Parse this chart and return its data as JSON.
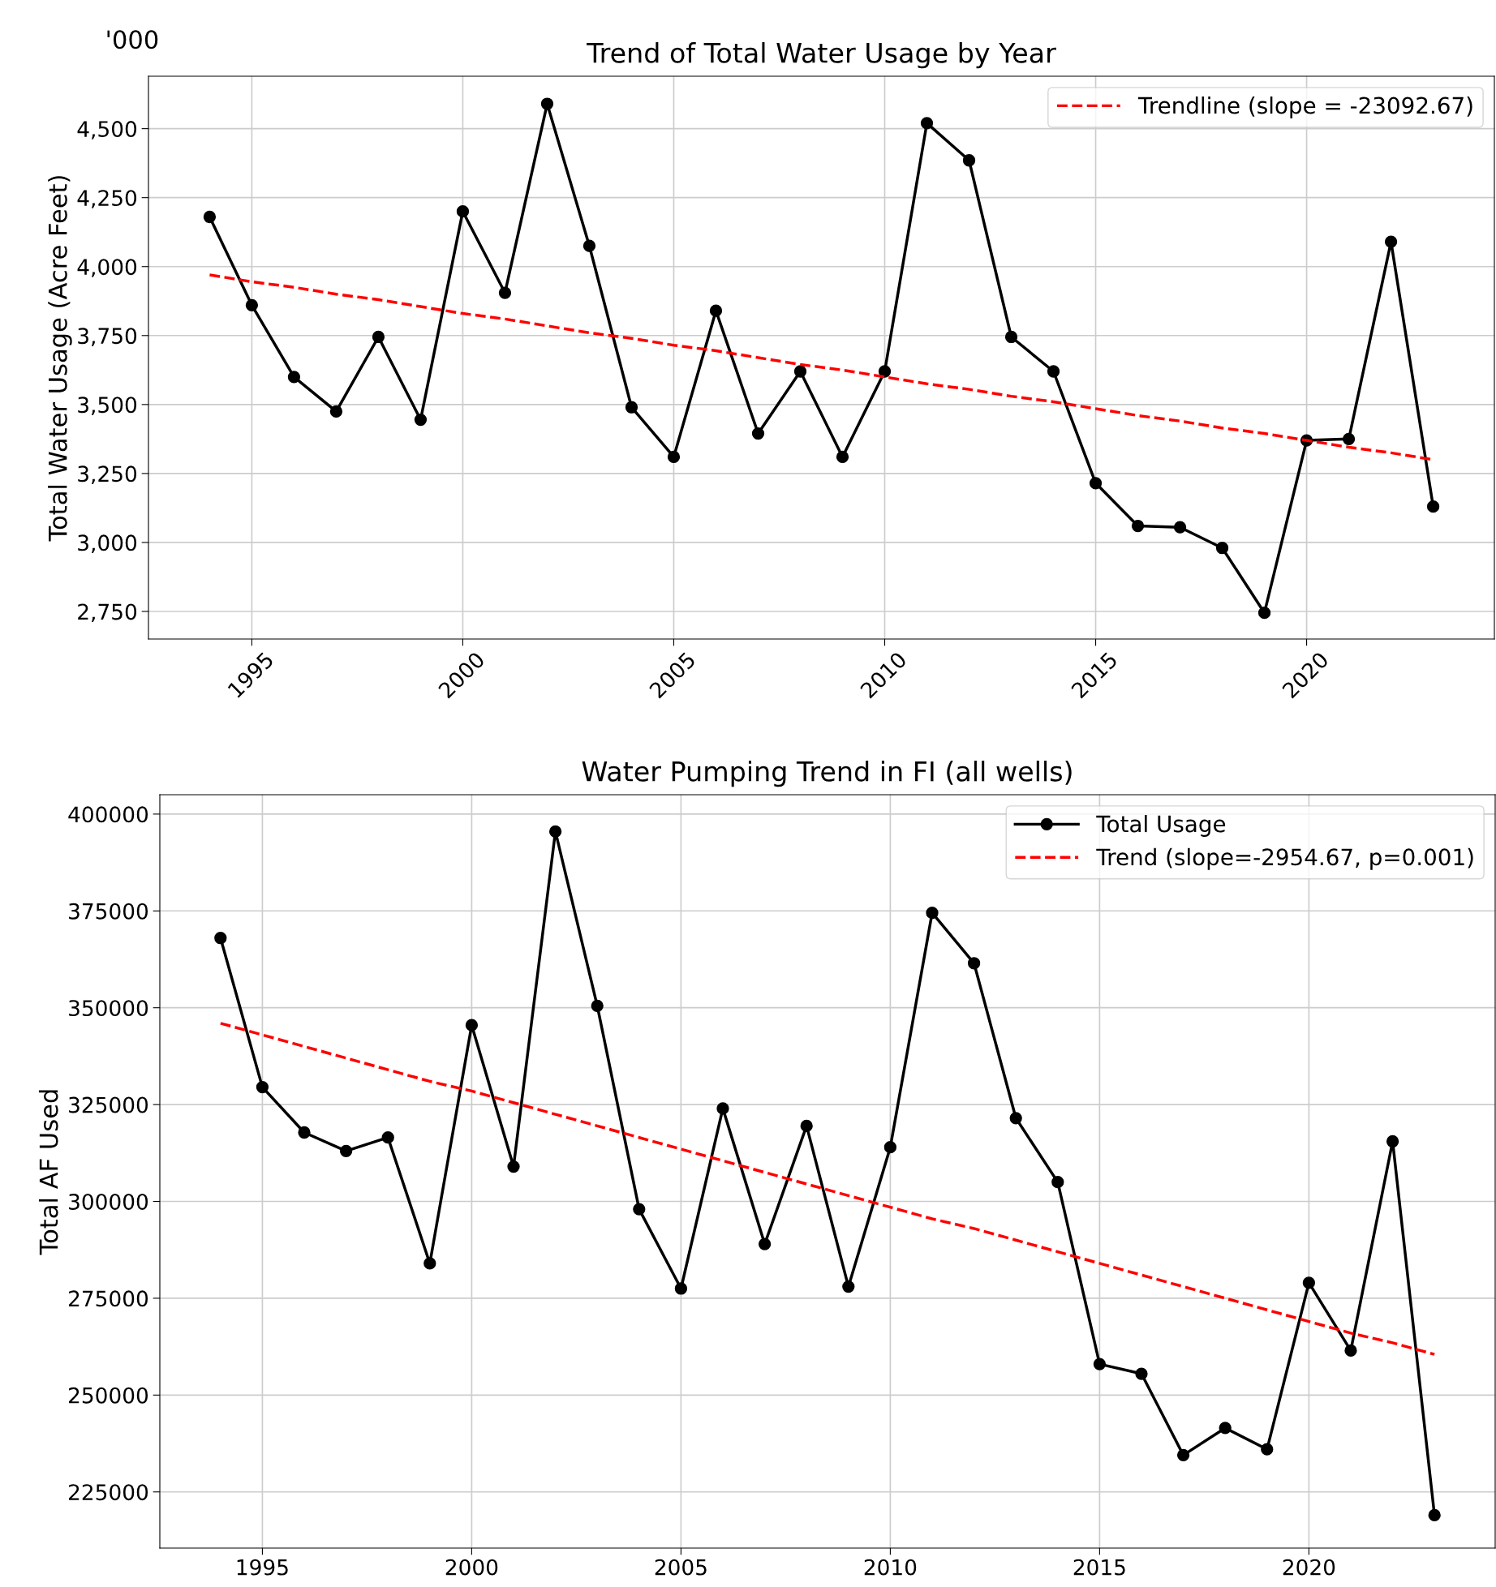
{
  "chart_data": [
    {
      "type": "line",
      "title": "Trend of Total Water Usage by Year",
      "ylabel": "Total Water Usage (Acre Feet)",
      "annotations": [
        "'000"
      ],
      "x": [
        1994,
        1995,
        1996,
        1997,
        1998,
        1999,
        2000,
        2001,
        2002,
        2003,
        2004,
        2005,
        2006,
        2007,
        2008,
        2009,
        2010,
        2011,
        2012,
        2013,
        2014,
        2015,
        2016,
        2017,
        2018,
        2019,
        2020,
        2021,
        2022,
        2023
      ],
      "series": [
        {
          "color": "#000000",
          "marker": "circle",
          "line_style": "solid",
          "values": [
            4180,
            3860,
            3600,
            3475,
            3745,
            3445,
            4200,
            3905,
            4590,
            4075,
            3490,
            3310,
            3840,
            3395,
            3620,
            3310,
            3620,
            4520,
            4385,
            3745,
            3620,
            3215,
            3060,
            3055,
            2980,
            2745,
            3370,
            3375,
            4090,
            3130
          ]
        },
        {
          "name": "Trendline (slope = -23092.67)",
          "color": "#ff0000",
          "marker": "none",
          "line_style": "dashed",
          "values": [
            3970,
            3945,
            3925,
            3900,
            3880,
            3855,
            3830,
            3810,
            3785,
            3760,
            3740,
            3715,
            3695,
            3670,
            3645,
            3625,
            3600,
            3575,
            3555,
            3530,
            3510,
            3485,
            3460,
            3440,
            3415,
            3395,
            3370,
            3345,
            3325,
            3300
          ]
        }
      ],
      "xlim": [
        1992.55,
        2024.45
      ],
      "xticks": [
        1995,
        2000,
        2005,
        2010,
        2015,
        2020
      ],
      "ylim": [
        2650,
        4690
      ],
      "yticks": [
        {
          "value": 2750,
          "label": "2,750"
        },
        {
          "value": 3000,
          "label": "3,000"
        },
        {
          "value": 3250,
          "label": "3,250"
        },
        {
          "value": 3500,
          "label": "3,500"
        },
        {
          "value": 3750,
          "label": "3,750"
        },
        {
          "value": 4000,
          "label": "4,000"
        },
        {
          "value": 4250,
          "label": "4,250"
        },
        {
          "value": 4500,
          "label": "4,500"
        }
      ],
      "grid": true,
      "legend": "top right"
    },
    {
      "type": "line",
      "title": "Water Pumping Trend in FI (all wells)",
      "ylabel": "Total AF Used",
      "x": [
        1994,
        1995,
        1996,
        1997,
        1998,
        1999,
        2000,
        2001,
        2002,
        2003,
        2004,
        2005,
        2006,
        2007,
        2008,
        2009,
        2010,
        2011,
        2012,
        2013,
        2014,
        2015,
        2016,
        2017,
        2018,
        2019,
        2020,
        2021,
        2022,
        2023
      ],
      "series": [
        {
          "name": "Total Usage",
          "color": "#000000",
          "marker": "circle",
          "line_style": "solid",
          "values": [
            368000,
            329500,
            317800,
            313000,
            316500,
            284000,
            345500,
            309000,
            395500,
            350500,
            298000,
            277500,
            324000,
            289000,
            319500,
            278000,
            314000,
            374500,
            361500,
            321500,
            305000,
            258000,
            255500,
            234500,
            241500,
            236000,
            279000,
            261500,
            315500,
            219000
          ]
        },
        {
          "name": "Trend (slope=-2954.67, p=0.001)",
          "color": "#ff0000",
          "marker": "none",
          "line_style": "dashed",
          "values": [
            346000,
            343000,
            340000,
            337000,
            334000,
            331000,
            328500,
            325500,
            322500,
            319500,
            316500,
            313500,
            310500,
            307500,
            304500,
            301500,
            298500,
            295500,
            293000,
            290000,
            287000,
            284000,
            281000,
            278000,
            275000,
            272000,
            269000,
            266000,
            263500,
            260500
          ]
        }
      ],
      "xlim": [
        1992.55,
        2024.45
      ],
      "xticks": [
        1995,
        2000,
        2005,
        2010,
        2015,
        2020
      ],
      "ylim": [
        210500,
        405000
      ],
      "yticks": [
        225000,
        250000,
        275000,
        300000,
        325000,
        350000,
        375000,
        400000
      ],
      "grid": true,
      "legend": "top right"
    }
  ]
}
